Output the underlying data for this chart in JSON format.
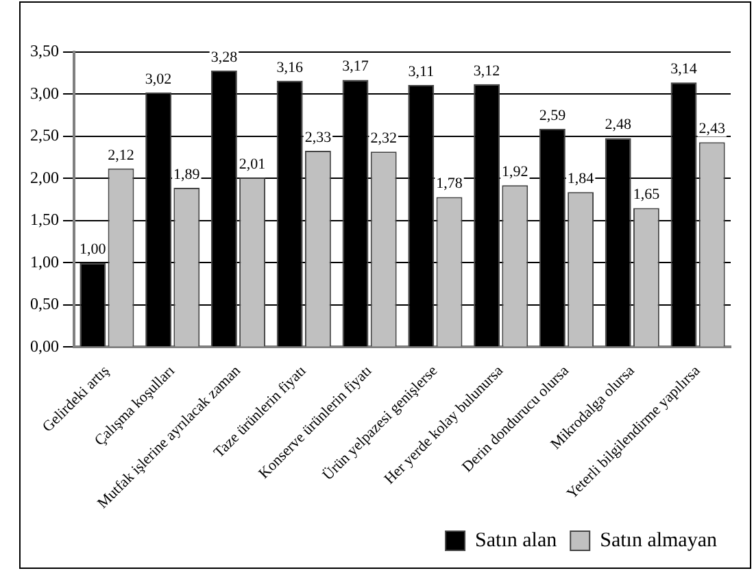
{
  "chart_data": {
    "type": "bar",
    "categories": [
      "Gelirdeki artış",
      "Çalışma koşulları",
      "Mutfak işlerine ayrılacak zaman",
      "Taze ürünlerin fiyatı",
      "Konserve ürünlerin fiyatı",
      "Ürün yelpazesi genişlerse",
      "Her yerde kolay bulunursa",
      "Derin dondurucu olursa",
      "Mikrodalga olursa",
      "Yeterli bilgilendirme yapılırsa"
    ],
    "series": [
      {
        "name": "Satın alan",
        "color": "#000000",
        "values": [
          1.0,
          3.02,
          3.28,
          3.16,
          3.17,
          3.11,
          3.12,
          2.59,
          2.48,
          3.14
        ],
        "value_labels": [
          "1,00",
          "3,02",
          "3,28",
          "3,16",
          "3,17",
          "3,11",
          "3,12",
          "2,59",
          "2,48",
          "3,14"
        ]
      },
      {
        "name": "Satın almayan",
        "color": "#c0c0c0",
        "values": [
          2.12,
          1.89,
          2.01,
          2.33,
          2.32,
          1.78,
          1.92,
          1.84,
          1.65,
          2.43
        ],
        "value_labels": [
          "2,12",
          "1,89",
          "2,01",
          "2,33",
          "2,32",
          "1,78",
          "1,92",
          "1,84",
          "1,65",
          "2,43"
        ]
      }
    ],
    "ylim": [
      0,
      3.5
    ],
    "yticks": [
      {
        "value": 0,
        "label": "0,00"
      },
      {
        "value": 0.5,
        "label": "0,50"
      },
      {
        "value": 1,
        "label": "1,00"
      },
      {
        "value": 1.5,
        "label": "1,50"
      },
      {
        "value": 2,
        "label": "2,00"
      },
      {
        "value": 2.5,
        "label": "2,50"
      },
      {
        "value": 3,
        "label": "3,00"
      },
      {
        "value": 3.5,
        "label": "3,50"
      }
    ],
    "grid": "y",
    "legend": "bottom right"
  }
}
